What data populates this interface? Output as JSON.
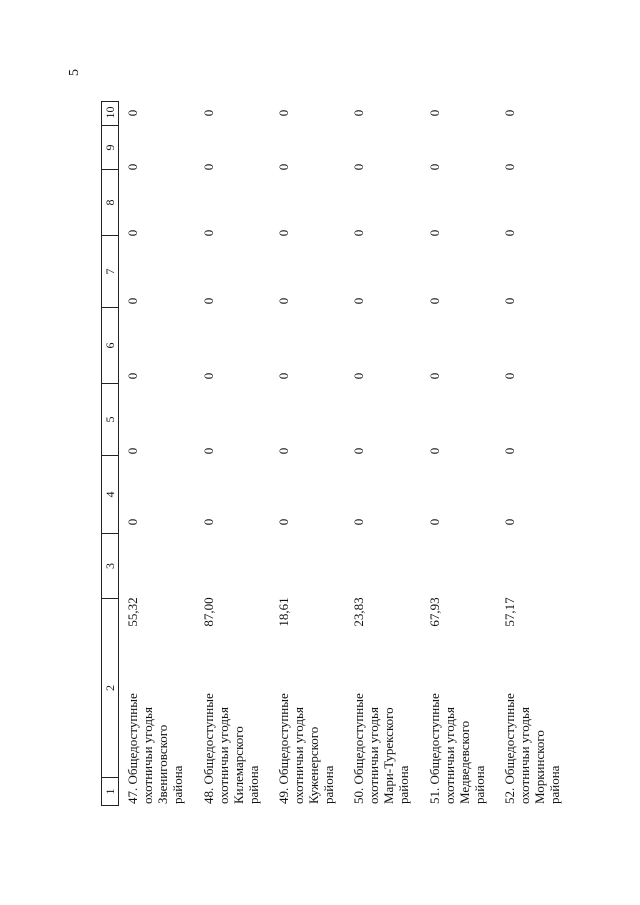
{
  "page_number": "5",
  "table": {
    "headers": [
      "1",
      "2",
      "3",
      "4",
      "5",
      "6",
      "7",
      "8",
      "9",
      "10"
    ],
    "rows": [
      {
        "num": "47.",
        "name": "Общедоступные\nохотничьи  угодья\nЗвениговского\nрайона",
        "c3": "55,32",
        "c4": "0",
        "c5": "0",
        "c6": "0",
        "c7": "0",
        "c8": "0",
        "c9": "0",
        "c10": "0"
      },
      {
        "num": "48.",
        "name": "Общедоступные\nохотничьи  угодья\nКилемарского\nрайона",
        "c3": "87,00",
        "c4": "0",
        "c5": "0",
        "c6": "0",
        "c7": "0",
        "c8": "0",
        "c9": "0",
        "c10": "0"
      },
      {
        "num": "49.",
        "name": "Общедоступные\nохотничьи  угодья\nКуженерского\nрайона",
        "c3": "18,61",
        "c4": "0",
        "c5": "0",
        "c6": "0",
        "c7": "0",
        "c8": "0",
        "c9": "0",
        "c10": "0"
      },
      {
        "num": "50.",
        "name": "Общедоступные\nохотничьи  угодья\nМари-Турекского\nрайона",
        "c3": "23,83",
        "c4": "0",
        "c5": "0",
        "c6": "0",
        "c7": "0",
        "c8": "0",
        "c9": "0",
        "c10": "0"
      },
      {
        "num": "51.",
        "name": "Общедоступные\nохотничьи  угодья\nМедведевского\nрайона",
        "c3": "67,93",
        "c4": "0",
        "c5": "0",
        "c6": "0",
        "c7": "0",
        "c8": "0",
        "c9": "0",
        "c10": "0"
      },
      {
        "num": "52.",
        "name": "Общедоступные\nохотничьи  угодья\nМоркинского\nрайона",
        "c3": "57,17",
        "c4": "0",
        "c5": "0",
        "c6": "0",
        "c7": "0",
        "c8": "0",
        "c9": "0",
        "c10": "0"
      }
    ]
  }
}
